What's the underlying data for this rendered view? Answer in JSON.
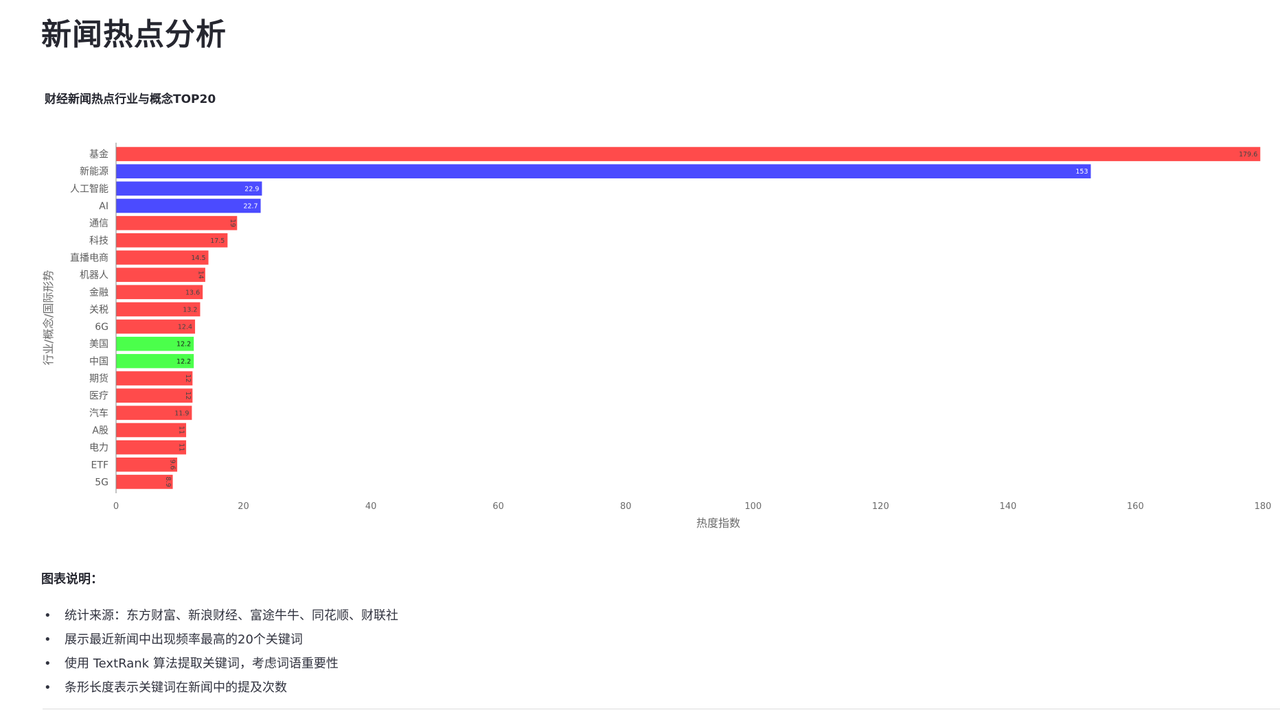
{
  "page": {
    "title": "新闻热点分析"
  },
  "chart_data": {
    "type": "bar",
    "orientation": "horizontal",
    "title": "财经新闻热点行业与概念TOP20",
    "xlabel": "热度指数",
    "ylabel": "行业/概念/国际形势",
    "xlim": [
      0,
      180
    ],
    "xticks": [
      0,
      20,
      40,
      60,
      80,
      100,
      120,
      140,
      160,
      180
    ],
    "grid": false,
    "legend": "none",
    "categories": [
      "基金",
      "新能源",
      "人工智能",
      "AI",
      "通信",
      "科技",
      "直播电商",
      "机器人",
      "金融",
      "关税",
      "6G",
      "美国",
      "中国",
      "期货",
      "医疗",
      "汽车",
      "A股",
      "电力",
      "ETF",
      "5G"
    ],
    "values": [
      179.6,
      153,
      22.9,
      22.7,
      19,
      17.5,
      14.5,
      14,
      13.6,
      13.2,
      12.4,
      12.2,
      12.2,
      12,
      12,
      11.9,
      11,
      11,
      9.6,
      8.9
    ],
    "value_labels": [
      "179.6",
      "153",
      "22.9",
      "22.7",
      "19",
      "17.5",
      "14.5",
      "14",
      "13.6",
      "13.2",
      "12.4",
      "12.2",
      "12.2",
      "12",
      "12",
      "11.9",
      "11",
      "11",
      "9.6",
      "8.9"
    ],
    "colors": [
      "#ff4b4b",
      "#4b4bff",
      "#4b4bff",
      "#4b4bff",
      "#ff4b4b",
      "#ff4b4b",
      "#ff4b4b",
      "#ff4b4b",
      "#ff4b4b",
      "#ff4b4b",
      "#ff4b4b",
      "#4bff4b",
      "#4bff4b",
      "#ff4b4b",
      "#ff4b4b",
      "#ff4b4b",
      "#ff4b4b",
      "#ff4b4b",
      "#ff4b4b",
      "#ff4b4b"
    ],
    "label_colors": [
      "#444444",
      "#ffffff",
      "#ffffff",
      "#ffffff",
      "#444444",
      "#444444",
      "#444444",
      "#444444",
      "#444444",
      "#444444",
      "#444444",
      "#1a1a1a",
      "#1a1a1a",
      "#444444",
      "#444444",
      "#444444",
      "#444444",
      "#444444",
      "#444444",
      "#444444"
    ]
  },
  "notes": {
    "heading": "图表说明：",
    "bullet_symbol": "•",
    "items": [
      "统计来源：东方财富、新浪财经、富途牛牛、同花顺、财联社",
      "展示最近新闻中出现频率最高的20个关键词",
      "使用 TextRank 算法提取关键词，考虑词语重要性",
      "条形长度表示关键词在新闻中的提及次数"
    ]
  }
}
